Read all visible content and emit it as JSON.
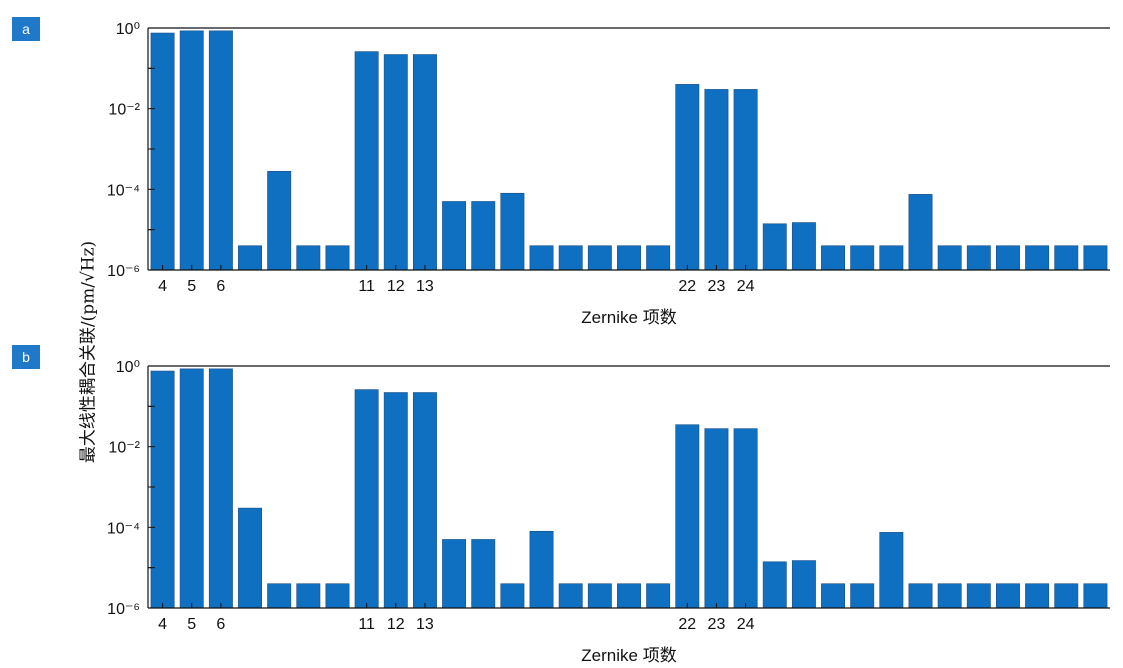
{
  "panels": [
    {
      "label": "a"
    },
    {
      "label": "b"
    }
  ],
  "ylabel": "最大线性耦合关联/(pm/√Hz)",
  "colors": {
    "bar": "#0f6fc0",
    "bar_edge": "#1a4f86",
    "badge": "#1f78c8",
    "axis": "#111111"
  },
  "chart_data": [
    {
      "type": "bar",
      "panel": "a",
      "title": "",
      "xlabel": "Zernike 项数",
      "ylabel": "最大线性耦合关联/(pm/√Hz)",
      "yscale": "log",
      "ylim": [
        1e-06,
        1
      ],
      "y_tick_labels": [
        "10⁰",
        "10⁻²",
        "10⁻⁴",
        "10⁻⁶"
      ],
      "x_tick_labels": [
        {
          "index": 0,
          "label": "4"
        },
        {
          "index": 1,
          "label": "5"
        },
        {
          "index": 2,
          "label": "6"
        },
        {
          "index": 7,
          "label": "11"
        },
        {
          "index": 8,
          "label": "12"
        },
        {
          "index": 9,
          "label": "13"
        },
        {
          "index": 18,
          "label": "22"
        },
        {
          "index": 19,
          "label": "23"
        },
        {
          "index": 20,
          "label": "24"
        }
      ],
      "values": [
        0.75,
        0.85,
        0.85,
        4e-06,
        0.00028,
        4e-06,
        4e-06,
        0.26,
        0.22,
        0.22,
        5e-05,
        5e-05,
        8e-05,
        4e-06,
        4e-06,
        4e-06,
        4e-06,
        4e-06,
        0.04,
        0.03,
        0.03,
        1.4e-05,
        1.5e-05,
        4e-06,
        4e-06,
        4e-06,
        7.5e-05,
        4e-06,
        4e-06,
        4e-06,
        4e-06,
        4e-06,
        4e-06
      ]
    },
    {
      "type": "bar",
      "panel": "b",
      "title": "",
      "xlabel": "Zernike 项数",
      "ylabel": "最大线性耦合关联/(pm/√Hz)",
      "yscale": "log",
      "ylim": [
        1e-06,
        1
      ],
      "y_tick_labels": [
        "10⁰",
        "10⁻²",
        "10⁻⁴",
        "10⁻⁶"
      ],
      "x_tick_labels": [
        {
          "index": 0,
          "label": "4"
        },
        {
          "index": 1,
          "label": "5"
        },
        {
          "index": 2,
          "label": "6"
        },
        {
          "index": 7,
          "label": "11"
        },
        {
          "index": 8,
          "label": "12"
        },
        {
          "index": 9,
          "label": "13"
        },
        {
          "index": 18,
          "label": "22"
        },
        {
          "index": 19,
          "label": "23"
        },
        {
          "index": 20,
          "label": "24"
        }
      ],
      "values": [
        0.75,
        0.85,
        0.85,
        0.0003,
        4e-06,
        4e-06,
        4e-06,
        0.26,
        0.22,
        0.22,
        5e-05,
        5e-05,
        4e-06,
        8e-05,
        4e-06,
        4e-06,
        4e-06,
        4e-06,
        0.035,
        0.028,
        0.028,
        1.4e-05,
        1.5e-05,
        4e-06,
        4e-06,
        7.5e-05,
        4e-06,
        4e-06,
        4e-06,
        4e-06,
        4e-06,
        4e-06,
        4e-06
      ]
    }
  ]
}
